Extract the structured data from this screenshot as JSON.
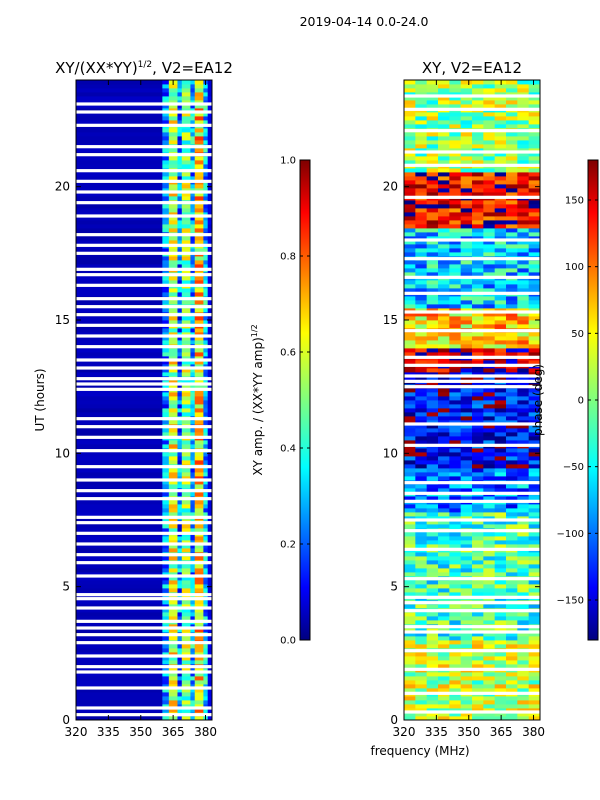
{
  "figure": {
    "suptitle": "2019-04-14 0.0-24.0",
    "shared_xlabel": "frequency (MHz)"
  },
  "chart_data": [
    {
      "type": "heatmap",
      "title_main": "XY/(XX*YY)",
      "title_sup": "1/2",
      "title_tail": ", V2=EA12",
      "ylabel": "UT (hours)",
      "xlim": [
        320,
        383
      ],
      "ylim": [
        0,
        24
      ],
      "x_ticks": [
        320,
        335,
        350,
        365,
        380
      ],
      "y_ticks": [
        0,
        5,
        10,
        15,
        20
      ],
      "colormap": "jet",
      "colorbar": {
        "label_main": "XY amp. / (XX*YY amp)",
        "label_sup": "1/2",
        "range": [
          0.0,
          1.0
        ],
        "ticks": [
          "0.0",
          "0.2",
          "0.4",
          "0.6",
          "0.8",
          "1.0"
        ]
      },
      "column_profile": [
        {
          "from": 320,
          "to": 360,
          "level": 0.04
        },
        {
          "from": 360,
          "to": 363,
          "level": 0.28
        },
        {
          "from": 363,
          "to": 367,
          "level": 0.58
        },
        {
          "from": 367,
          "to": 369,
          "level": 0.25
        },
        {
          "from": 369,
          "to": 373,
          "level": 0.52
        },
        {
          "from": 373,
          "to": 375,
          "level": 0.3
        },
        {
          "from": 375,
          "to": 379,
          "level": 0.66
        },
        {
          "from": 379,
          "to": 381,
          "level": 0.32
        },
        {
          "from": 381,
          "to": 383,
          "level": 0.08
        }
      ],
      "flagged_ut": [
        0.2,
        0.45,
        1.2,
        1.8,
        2.0,
        2.4,
        2.9,
        3.2,
        3.45,
        3.7,
        4.2,
        4.55,
        4.7,
        5.4,
        5.9,
        6.2,
        6.6,
        7.0,
        7.4,
        7.6,
        8.3,
        8.6,
        9.0,
        9.5,
        10.1,
        10.6,
        11.0,
        11.3,
        12.4,
        12.6,
        12.8,
        13.2,
        13.5,
        14.0,
        14.4,
        14.8,
        15.2,
        15.5,
        15.8,
        16.3,
        16.7,
        16.9,
        17.5,
        17.8,
        18.2,
        18.9,
        19.4,
        19.8,
        20.2,
        20.6,
        21.2,
        21.5,
        22.3,
        22.8,
        23.1
      ]
    },
    {
      "type": "heatmap",
      "title": "XY, V2=EA12",
      "ylabel": "",
      "xlim": [
        320,
        383
      ],
      "ylim": [
        0,
        24
      ],
      "x_ticks": [
        320,
        335,
        350,
        365,
        380
      ],
      "y_ticks": [
        0,
        5,
        10,
        15,
        20
      ],
      "colormap": "jet",
      "colorbar": {
        "label": "phase (deg)",
        "range": [
          -180,
          180
        ],
        "ticks": [
          "−150",
          "−100",
          "−50",
          "0",
          "50",
          "100",
          "150"
        ]
      },
      "phase_regions": [
        {
          "ut_from": 0,
          "ut_to": 3.0,
          "phase": 20
        },
        {
          "ut_from": 3.0,
          "ut_to": 7.8,
          "phase": -20
        },
        {
          "ut_from": 7.8,
          "ut_to": 9.5,
          "phase": -90
        },
        {
          "ut_from": 9.5,
          "ut_to": 13.0,
          "phase": -140
        },
        {
          "ut_from": 13.0,
          "ut_to": 14.0,
          "phase": 165
        },
        {
          "ut_from": 14.0,
          "ut_to": 15.5,
          "phase": 60
        },
        {
          "ut_from": 15.5,
          "ut_to": 18.5,
          "phase": -60
        },
        {
          "ut_from": 18.5,
          "ut_to": 20.5,
          "phase": 140
        },
        {
          "ut_from": 20.5,
          "ut_to": 24.0,
          "phase": 10
        }
      ],
      "flagged_ut": [
        0.3,
        1.0,
        1.9,
        2.6,
        3.3,
        3.5,
        4.1,
        4.4,
        4.6,
        5.3,
        6.4,
        7.1,
        7.5,
        8.2,
        8.5,
        8.9,
        10.3,
        11.1,
        12.5,
        12.7,
        12.9,
        13.3,
        13.6,
        14.6,
        15.3,
        16.0,
        16.6,
        17.3,
        18.0,
        19.6,
        20.8,
        21.3,
        22.1,
        22.9,
        23.4
      ]
    }
  ]
}
